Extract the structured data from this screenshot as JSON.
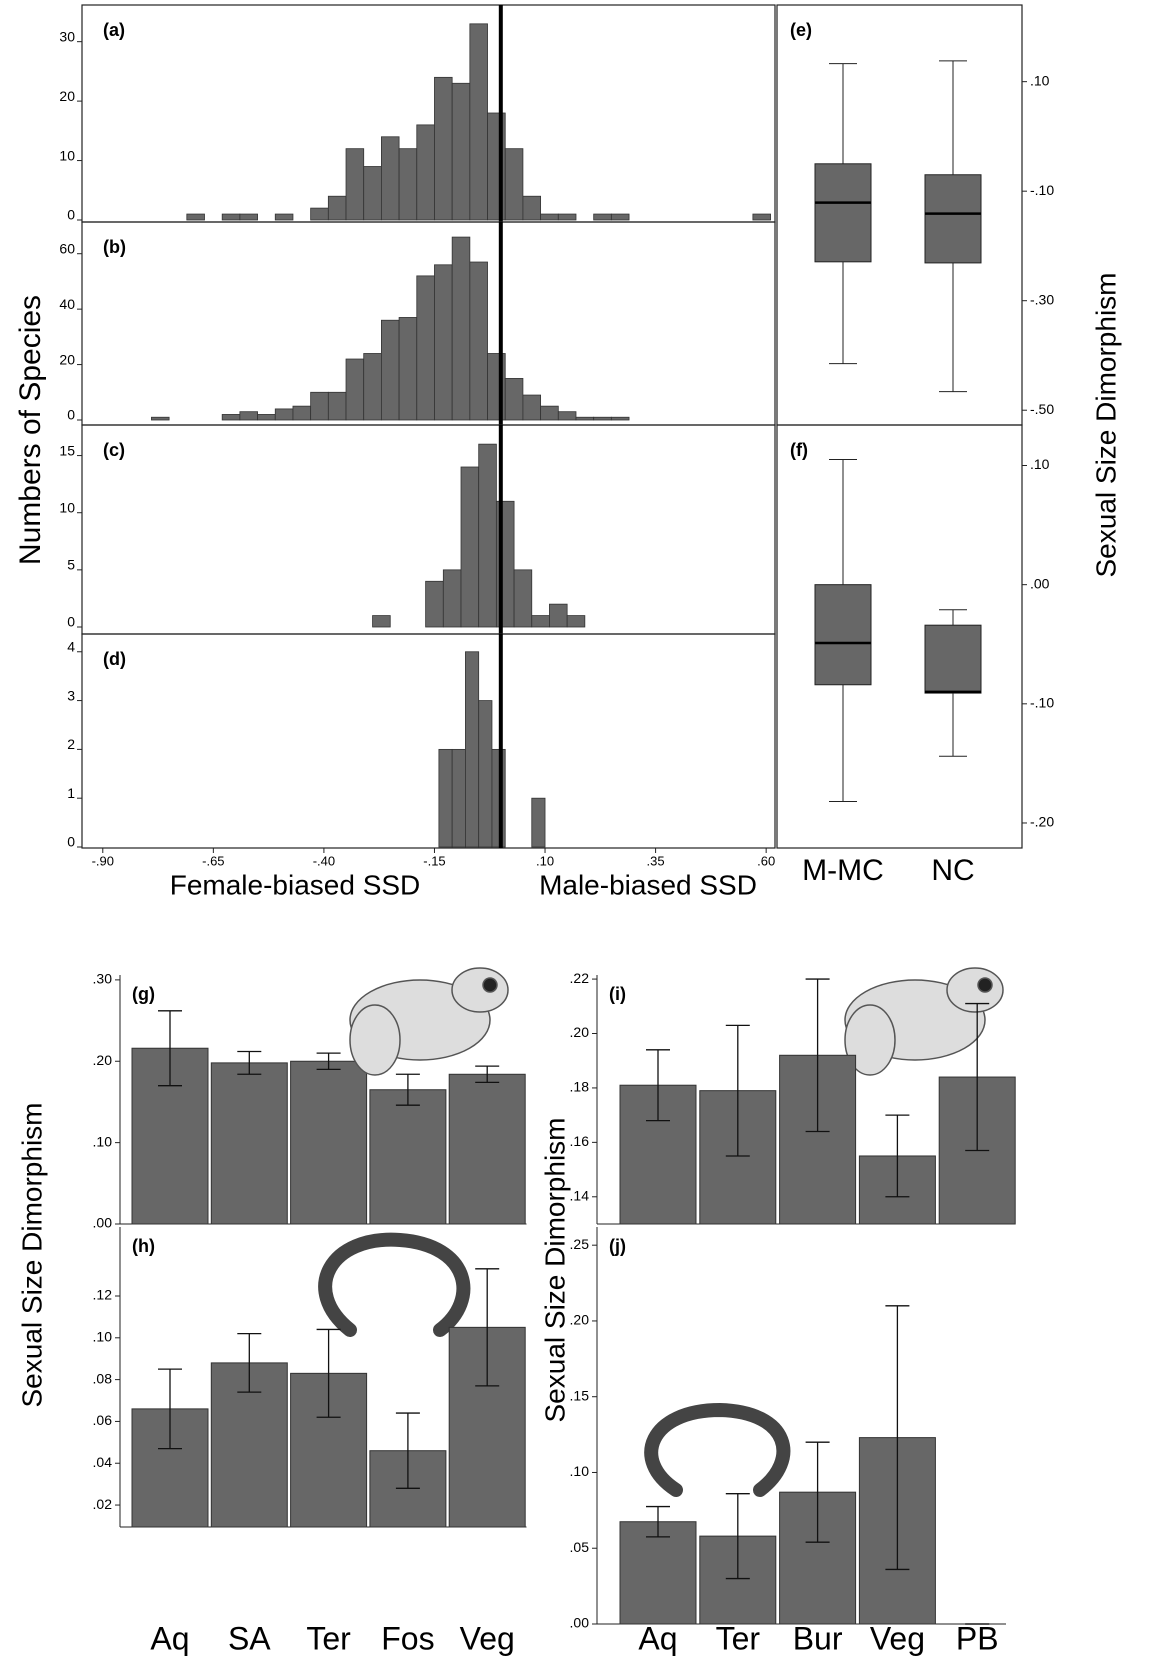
{
  "chart_data": [
    {
      "type": "histogram",
      "panel_label": "(a)",
      "ylabel": "Numbers of Species",
      "color": "#676767",
      "bins": [
        -0.79,
        -0.75,
        -0.71,
        -0.67,
        -0.63,
        -0.59,
        -0.55,
        -0.51,
        -0.47,
        -0.43,
        -0.39,
        -0.35,
        -0.31,
        -0.27,
        -0.23,
        -0.19,
        -0.15,
        -0.11,
        -0.07,
        -0.03,
        0.01,
        0.05,
        0.09,
        0.13,
        0.17,
        0.21,
        0.25,
        0.29,
        0.33,
        0.37,
        0.41,
        0.45,
        0.49,
        0.53,
        0.57,
        0.61
      ],
      "values": [
        0,
        0,
        1,
        0,
        1,
        1,
        0,
        1,
        0,
        2,
        4,
        12,
        9,
        14,
        12,
        16,
        24,
        23,
        33,
        18,
        12,
        4,
        1,
        1,
        0,
        1,
        1,
        0,
        0,
        0,
        0,
        0,
        0,
        0,
        1
      ],
      "xlim": [
        -0.947,
        0.62
      ],
      "ylim": [
        0,
        36
      ],
      "yticks": [
        0,
        10,
        20,
        30
      ],
      "reference_line": 0
    },
    {
      "type": "histogram",
      "panel_label": "(b)",
      "color": "#676767",
      "bins": [
        -0.79,
        -0.75,
        -0.71,
        -0.67,
        -0.63,
        -0.59,
        -0.55,
        -0.51,
        -0.47,
        -0.43,
        -0.39,
        -0.35,
        -0.31,
        -0.27,
        -0.23,
        -0.19,
        -0.15,
        -0.11,
        -0.07,
        -0.03,
        0.01,
        0.05,
        0.09,
        0.13,
        0.17,
        0.21,
        0.25,
        0.29,
        0.33,
        0.37,
        0.41,
        0.45,
        0.49,
        0.53,
        0.57,
        0.61
      ],
      "values": [
        1,
        0,
        0,
        0,
        2,
        3,
        2,
        4,
        5,
        10,
        10,
        22,
        24,
        36,
        37,
        52,
        56,
        66,
        57,
        24,
        15,
        9,
        5,
        3,
        1,
        1,
        1,
        0,
        0,
        0,
        0,
        0,
        0,
        0,
        0
      ],
      "xlim": [
        -0.947,
        0.62
      ],
      "ylim": [
        0,
        70
      ],
      "yticks": [
        0,
        20,
        40,
        60
      ],
      "reference_line": 0
    },
    {
      "type": "histogram",
      "panel_label": "(c)",
      "color": "#676767",
      "bins": [
        -0.29,
        -0.25,
        -0.21,
        -0.17,
        -0.13,
        -0.09,
        -0.05,
        -0.01,
        0.03,
        0.07,
        0.11,
        0.15,
        0.19
      ],
      "values": [
        1,
        0,
        0,
        4,
        5,
        14,
        16,
        11,
        5,
        1,
        2,
        1
      ],
      "xlim": [
        -0.947,
        0.62
      ],
      "ylim": [
        0,
        17.5
      ],
      "yticks": [
        0,
        5,
        10,
        15
      ],
      "reference_line": 0
    },
    {
      "type": "histogram",
      "panel_label": "(d)",
      "color": "#676767",
      "bins": [
        -0.14,
        -0.11,
        -0.08,
        -0.05,
        -0.02,
        0.01,
        0.04,
        0.07,
        0.1
      ],
      "values": [
        2,
        2,
        4,
        3,
        2,
        0,
        0,
        1
      ],
      "xlim": [
        -0.947,
        0.62
      ],
      "ylim": [
        0,
        4.2
      ],
      "yticks": [
        0,
        1,
        2,
        3,
        4
      ],
      "reference_line": 0,
      "xticks": [
        {
          "value": -0.9,
          "label": "-.90"
        },
        {
          "value": -0.65,
          "label": "-.65"
        },
        {
          "value": -0.4,
          "label": "-.40"
        },
        {
          "value": -0.15,
          "label": "-.15"
        },
        {
          "value": 0.1,
          "label": ".10"
        },
        {
          "value": 0.35,
          "label": ".35"
        },
        {
          "value": 0.6,
          "label": ".60"
        }
      ],
      "xlabel_left": "Female-biased SSD",
      "xlabel_right": "Male-biased SSD"
    },
    {
      "type": "box",
      "panel_label": "(e)",
      "ylabel": "Sexual Size Dimorphism",
      "color": "#676767",
      "whisker_high": [
        0.133,
        0.138
      ],
      "q3": [
        -0.05,
        -0.07
      ],
      "median": [
        -0.121,
        -0.141
      ],
      "q1": [
        -0.229,
        -0.231
      ],
      "whisker_low": [
        -0.415,
        -0.466
      ],
      "ylim": [
        -0.527,
        0.24
      ],
      "yticks": [
        {
          "value": 0.1,
          "label": ".10"
        },
        {
          "value": -0.1,
          "label": "-.10"
        },
        {
          "value": -0.3,
          "label": "-.30"
        },
        {
          "value": -0.5,
          "label": "-.50"
        }
      ]
    },
    {
      "type": "box",
      "panel_label": "(f)",
      "color": "#676767",
      "categories": [
        "M-MC",
        "NC"
      ],
      "whisker_high": [
        0.105,
        -0.021
      ],
      "q3": [
        0.0,
        -0.034
      ],
      "median": [
        -0.049,
        -0.09
      ],
      "q1": [
        -0.084,
        -0.091
      ],
      "whisker_low": [
        -0.182,
        -0.144
      ],
      "ylim": [
        -0.221,
        0.134
      ],
      "yticks": [
        {
          "value": 0.1,
          "label": ".10"
        },
        {
          "value": 0,
          "label": ".00"
        },
        {
          "value": -0.1,
          "label": "-.10"
        },
        {
          "value": -0.2,
          "label": "-.20"
        }
      ]
    },
    {
      "type": "bar",
      "panel_label": "(g)",
      "ylabel": "Sexual Size Dimorphism",
      "color": "#676767",
      "values": [
        0.216,
        0.198,
        0.2,
        0.165,
        0.184
      ],
      "errors": [
        0.046,
        0.014,
        0.01,
        0.019,
        0.01
      ],
      "ylim": [
        0,
        0.306
      ],
      "yticks": [
        {
          "value": 0.3,
          "label": ".30"
        },
        {
          "value": 0.2,
          "label": ".20"
        },
        {
          "value": 0.1,
          "label": ".10"
        },
        {
          "value": 0,
          "label": ".00"
        }
      ]
    },
    {
      "type": "bar",
      "panel_label": "(h)",
      "color": "#676767",
      "categories": [
        "Aq",
        "SA",
        "Ter",
        "Fos",
        "Veg"
      ],
      "values": [
        0.066,
        0.088,
        0.083,
        0.046,
        0.105
      ],
      "errors": [
        0.019,
        0.014,
        0.021,
        0.018,
        0.028
      ],
      "ylim": [
        0.0095,
        0.153
      ],
      "yticks": [
        {
          "value": 0.12,
          "label": ".12"
        },
        {
          "value": 0.1,
          "label": ".10"
        },
        {
          "value": 0.08,
          "label": ".08"
        },
        {
          "value": 0.06,
          "label": ".06"
        },
        {
          "value": 0.04,
          "label": ".04"
        },
        {
          "value": 0.02,
          "label": ".02"
        }
      ]
    },
    {
      "type": "bar",
      "panel_label": "(i)",
      "ylabel": "Sexual Size Dimorphism",
      "color": "#676767",
      "values": [
        0.181,
        0.179,
        0.192,
        0.155,
        0.184
      ],
      "errors": [
        0.013,
        0.024,
        0.028,
        0.015,
        0.027
      ],
      "ylim": [
        0.13,
        0.2215
      ],
      "yticks": [
        {
          "value": 0.22,
          "label": ".22"
        },
        {
          "value": 0.2,
          "label": ".20"
        },
        {
          "value": 0.18,
          "label": ".18"
        },
        {
          "value": 0.16,
          "label": ".16"
        },
        {
          "value": 0.14,
          "label": ".14"
        }
      ]
    },
    {
      "type": "bar",
      "panel_label": "(j)",
      "color": "#676767",
      "categories": [
        "Aq",
        "Ter",
        "Bur",
        "Veg",
        "PB"
      ],
      "values": [
        0.0675,
        0.058,
        0.087,
        0.123,
        0
      ],
      "errors": [
        0.01,
        0.028,
        0.033,
        0.087,
        0
      ],
      "ylim": [
        0,
        0.262
      ],
      "yticks": [
        {
          "value": 0.25,
          "label": ".25"
        },
        {
          "value": 0.2,
          "label": ".20"
        },
        {
          "value": 0.15,
          "label": ".15"
        },
        {
          "value": 0.1,
          "label": ".10"
        },
        {
          "value": 0.05,
          "label": ".05"
        },
        {
          "value": 0,
          "label": ".00"
        }
      ]
    }
  ]
}
